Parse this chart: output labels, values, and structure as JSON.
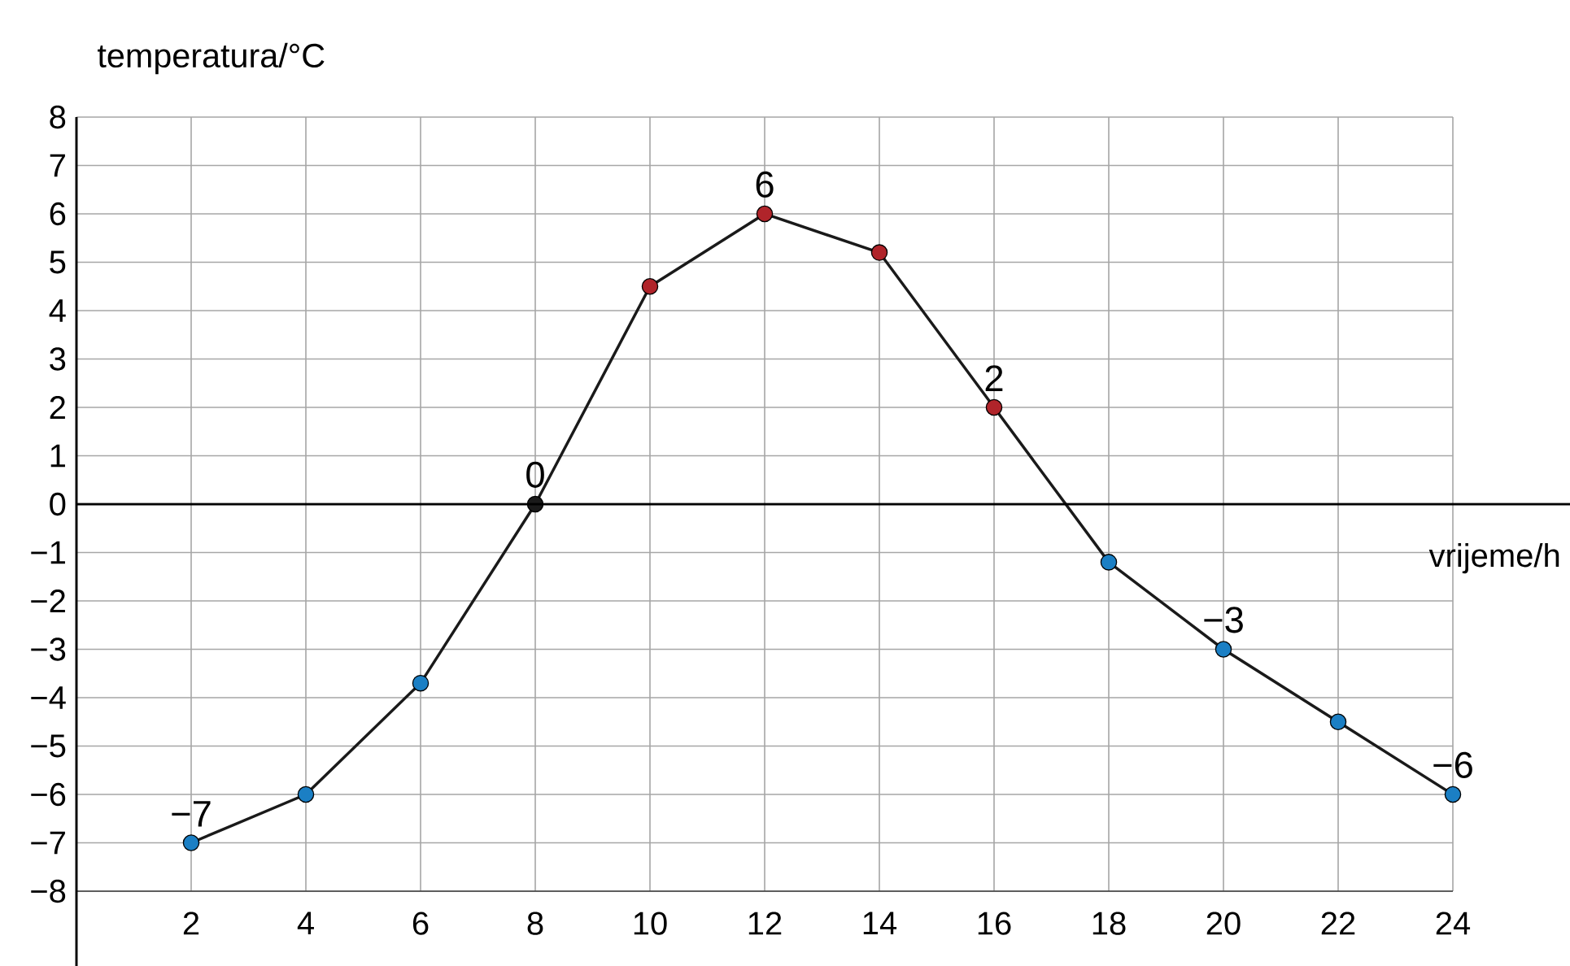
{
  "chart_data": {
    "type": "line",
    "xlabel": "vrijeme/h",
    "ylabel": "temperatura/°C",
    "x": [
      2,
      4,
      6,
      8,
      10,
      12,
      14,
      16,
      18,
      20,
      22,
      24
    ],
    "values": [
      -7,
      -6,
      -3.7,
      0,
      4.5,
      6,
      5.2,
      2,
      -1.2,
      -3,
      -4.5,
      -6
    ],
    "color": "#1a1a1a",
    "colors": [
      "#1b7fc4",
      "#1b7fc4",
      "#1b7fc4",
      "#1a1a1a",
      "#b0242a",
      "#b0242a",
      "#b0242a",
      "#b0242a",
      "#1b7fc4",
      "#1b7fc4",
      "#1b7fc4",
      "#1b7fc4"
    ],
    "value_labels": [
      "−7",
      null,
      null,
      "0",
      null,
      "6",
      null,
      "2",
      null,
      "−3",
      null,
      "−6"
    ],
    "xlim": [
      0,
      24
    ],
    "ylim": [
      -8,
      8
    ],
    "xticks": [
      2,
      4,
      6,
      8,
      10,
      12,
      14,
      16,
      18,
      20,
      22,
      24
    ],
    "yticks": [
      {
        "value": -8,
        "label": "−8"
      },
      {
        "value": -7,
        "label": "−7"
      },
      {
        "value": -6,
        "label": "−6"
      },
      {
        "value": -5,
        "label": "−5"
      },
      {
        "value": -4,
        "label": "−4"
      },
      {
        "value": -3,
        "label": "−3"
      },
      {
        "value": -2,
        "label": "−2"
      },
      {
        "value": -1,
        "label": "−1"
      },
      0,
      1,
      2,
      3,
      4,
      5,
      6,
      7,
      8
    ],
    "grid": true,
    "marker": "circle",
    "line_style": "solid"
  }
}
